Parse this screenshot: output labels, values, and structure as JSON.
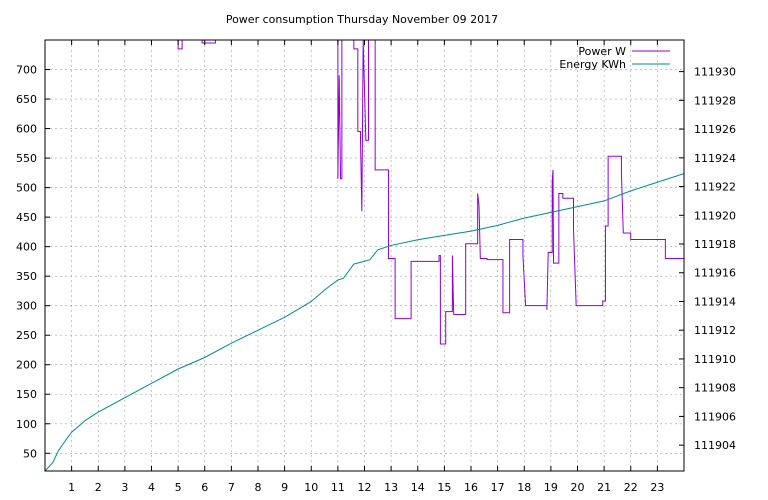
{
  "chart_data": {
    "type": "line",
    "title": "Power consumption Thursday November 09 2017",
    "xlabel": "",
    "ylabel": "",
    "y2label": "",
    "grid": true,
    "legend_position": "top-right",
    "xlim": [
      0,
      24
    ],
    "ylim": [
      20,
      750
    ],
    "y2lim": [
      111902.2,
      111932.2
    ],
    "x_ticks": [
      1,
      2,
      3,
      4,
      5,
      6,
      7,
      8,
      9,
      10,
      11,
      12,
      13,
      14,
      15,
      16,
      17,
      18,
      19,
      20,
      21,
      22,
      23
    ],
    "y_ticks": [
      50,
      100,
      150,
      200,
      250,
      300,
      350,
      400,
      450,
      500,
      550,
      600,
      650,
      700
    ],
    "y2_ticks": [
      111904,
      111906,
      111908,
      111910,
      111912,
      111914,
      111916,
      111918,
      111920,
      111922,
      111924,
      111926,
      111928,
      111930
    ],
    "series": [
      {
        "name": "Power W",
        "axis": "y",
        "color": "#9400d3",
        "points": [
          [
            5.0,
            750
          ],
          [
            5.0,
            735
          ],
          [
            5.15,
            735
          ],
          [
            5.15,
            750
          ],
          [
            5.9,
            750
          ],
          [
            5.9,
            745
          ],
          [
            6.4,
            745
          ],
          [
            6.4,
            750
          ],
          [
            11.0,
            750
          ],
          [
            11.0,
            515
          ],
          [
            11.05,
            690
          ],
          [
            11.1,
            515
          ],
          [
            11.15,
            515
          ],
          [
            11.15,
            750
          ],
          [
            11.6,
            750
          ],
          [
            11.6,
            735
          ],
          [
            11.75,
            735
          ],
          [
            11.75,
            595
          ],
          [
            11.85,
            595
          ],
          [
            11.85,
            580
          ],
          [
            11.9,
            460
          ],
          [
            11.95,
            750
          ],
          [
            12.05,
            580
          ],
          [
            12.15,
            580
          ],
          [
            12.15,
            750
          ],
          [
            12.4,
            750
          ],
          [
            12.4,
            530
          ],
          [
            12.9,
            530
          ],
          [
            12.9,
            380
          ],
          [
            13.15,
            380
          ],
          [
            13.15,
            278
          ],
          [
            13.75,
            278
          ],
          [
            13.75,
            375
          ],
          [
            14.8,
            375
          ],
          [
            14.8,
            385
          ],
          [
            14.85,
            385
          ],
          [
            14.85,
            235
          ],
          [
            15.05,
            235
          ],
          [
            15.05,
            290
          ],
          [
            15.3,
            290
          ],
          [
            15.3,
            385
          ],
          [
            15.35,
            285
          ],
          [
            15.8,
            285
          ],
          [
            15.8,
            405
          ],
          [
            16.25,
            405
          ],
          [
            16.25,
            490
          ],
          [
            16.3,
            470
          ],
          [
            16.35,
            380
          ],
          [
            16.6,
            380
          ],
          [
            16.6,
            378
          ],
          [
            17.2,
            378
          ],
          [
            17.2,
            288
          ],
          [
            17.45,
            288
          ],
          [
            17.45,
            412
          ],
          [
            17.95,
            412
          ],
          [
            17.95,
            385
          ],
          [
            18.05,
            300
          ],
          [
            18.85,
            300
          ],
          [
            18.85,
            293
          ],
          [
            18.9,
            390
          ],
          [
            19.05,
            390
          ],
          [
            19.05,
            510
          ],
          [
            19.08,
            530
          ],
          [
            19.1,
            372
          ],
          [
            19.3,
            372
          ],
          [
            19.3,
            490
          ],
          [
            19.45,
            490
          ],
          [
            19.45,
            482
          ],
          [
            19.85,
            482
          ],
          [
            19.85,
            430
          ],
          [
            19.95,
            300
          ],
          [
            20.95,
            300
          ],
          [
            20.95,
            308
          ],
          [
            21.05,
            308
          ],
          [
            21.05,
            435
          ],
          [
            21.15,
            435
          ],
          [
            21.15,
            553
          ],
          [
            21.65,
            553
          ],
          [
            21.65,
            525
          ],
          [
            21.72,
            423
          ],
          [
            22.0,
            423
          ],
          [
            22.0,
            412
          ],
          [
            23.3,
            412
          ],
          [
            23.3,
            380
          ],
          [
            24.0,
            380
          ]
        ]
      },
      {
        "name": "Energy KWh",
        "axis": "y2",
        "color": "#008b8b",
        "points": [
          [
            0.0,
            111902.2
          ],
          [
            0.3,
            111902.8
          ],
          [
            0.5,
            111903.6
          ],
          [
            0.8,
            111904.4
          ],
          [
            1.0,
            111904.9
          ],
          [
            1.5,
            111905.7
          ],
          [
            2.0,
            111906.3
          ],
          [
            3.0,
            111907.3
          ],
          [
            4.0,
            111908.3
          ],
          [
            5.0,
            111909.3
          ],
          [
            6.0,
            111910.1
          ],
          [
            7.0,
            111911.1
          ],
          [
            8.0,
            111912.0
          ],
          [
            9.0,
            111912.9
          ],
          [
            10.0,
            111914.0
          ],
          [
            10.5,
            111914.8
          ],
          [
            11.0,
            111915.5
          ],
          [
            11.2,
            111915.6
          ],
          [
            11.6,
            111916.6
          ],
          [
            12.2,
            111916.9
          ],
          [
            12.5,
            111917.6
          ],
          [
            13.0,
            111917.9
          ],
          [
            14.0,
            111918.3
          ],
          [
            15.0,
            111918.6
          ],
          [
            16.0,
            111918.9
          ],
          [
            17.0,
            111919.3
          ],
          [
            18.0,
            111919.8
          ],
          [
            19.0,
            111920.2
          ],
          [
            20.0,
            111920.6
          ],
          [
            21.0,
            111921.0
          ],
          [
            22.0,
            111921.7
          ],
          [
            23.0,
            111922.3
          ],
          [
            24.0,
            111922.9
          ]
        ]
      }
    ]
  }
}
